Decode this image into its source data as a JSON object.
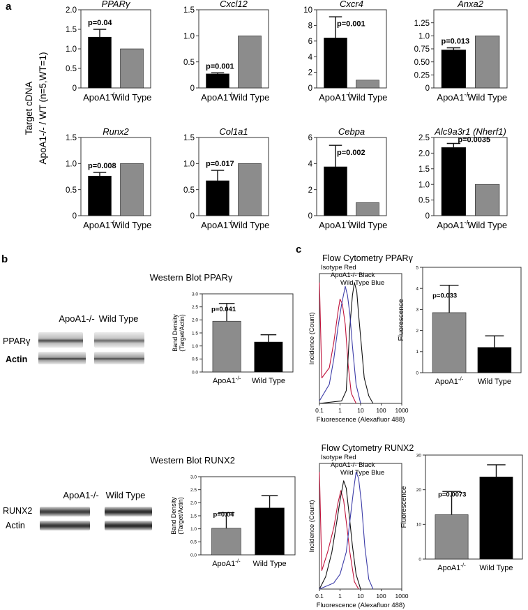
{
  "panel_labels": {
    "a": "a",
    "b": "b",
    "c": "c"
  },
  "panel_a": {
    "ylabel_line1": "Target cDNA",
    "ylabel_line2": "ApoA1-/- / WT (n=5,WT=1)"
  },
  "chart_data": [
    {
      "id": "pparg",
      "panel": "a",
      "type": "bar",
      "title": "PPARγ",
      "categories": [
        "ApoA1-/-",
        "Wild Type"
      ],
      "values": [
        1.3,
        1.0
      ],
      "error": [
        0.2,
        0
      ],
      "pvalue": "p=0.04",
      "ylim": [
        0,
        2.0
      ],
      "yticks": [
        0,
        0.5,
        1.0,
        1.5,
        2.0
      ],
      "ytick_labels": [
        "0",
        "0.5",
        "1.0",
        "1.5",
        "2.0"
      ],
      "ylabel": ""
    },
    {
      "id": "cxcl12",
      "panel": "a",
      "type": "bar",
      "title": "Cxcl12",
      "categories": [
        "ApoA1-/-",
        "Wild Type"
      ],
      "values": [
        0.27,
        1.0
      ],
      "error": [
        0.02,
        0
      ],
      "pvalue": "p=0.001",
      "ylim": [
        0,
        1.5
      ],
      "yticks": [
        0,
        0.5,
        1.0,
        1.5
      ],
      "ytick_labels": [
        "0",
        "0.5",
        "1.0",
        "1.5"
      ],
      "ylabel": ""
    },
    {
      "id": "cxcr4",
      "panel": "a",
      "type": "bar",
      "title": "Cxcr4",
      "categories": [
        "ApoA1-/-",
        "Wild Type"
      ],
      "values": [
        6.4,
        1.0
      ],
      "error": [
        2.7,
        0
      ],
      "pvalue": "p=0.001",
      "ylim": [
        0,
        10
      ],
      "yticks": [
        0,
        2,
        4,
        6,
        8,
        10
      ],
      "ytick_labels": [
        "0",
        "2",
        "4",
        "6",
        "8",
        "10"
      ],
      "ylabel": ""
    },
    {
      "id": "anxa2",
      "panel": "a",
      "type": "bar",
      "title": "Anxa2",
      "categories": [
        "ApoA1-/-",
        "Wild Type"
      ],
      "values": [
        0.73,
        1.0
      ],
      "error": [
        0.04,
        0
      ],
      "pvalue": "p=0.013",
      "ylim": [
        0,
        1.5
      ],
      "yticks": [
        0,
        0.25,
        0.5,
        0.75,
        1.0,
        1.25
      ],
      "ytick_labels": [
        "0",
        "0.25",
        "0.50",
        "0.75",
        "1.0",
        "1.25"
      ],
      "ylabel": ""
    },
    {
      "id": "runx2",
      "panel": "a",
      "type": "bar",
      "title": "Runx2",
      "categories": [
        "ApoA1-/-",
        "Wild Type"
      ],
      "values": [
        0.76,
        1.0
      ],
      "error": [
        0.07,
        0
      ],
      "pvalue": "p=0.008",
      "ylim": [
        0,
        1.5
      ],
      "yticks": [
        0,
        0.5,
        1.0,
        1.5
      ],
      "ytick_labels": [
        "0",
        "0.5",
        "1.0",
        "1.5"
      ],
      "ylabel": ""
    },
    {
      "id": "col1a1",
      "panel": "a",
      "type": "bar",
      "title": "Col1a1",
      "categories": [
        "ApoA1-/-",
        "Wild Type"
      ],
      "values": [
        0.67,
        1.0
      ],
      "error": [
        0.2,
        0
      ],
      "pvalue": "p=0.017",
      "ylim": [
        0,
        1.5
      ],
      "yticks": [
        0,
        0.5,
        1.0,
        1.5
      ],
      "ytick_labels": [
        "0",
        "0.5",
        "1.0",
        "1.5"
      ],
      "ylabel": ""
    },
    {
      "id": "cebpa",
      "panel": "a",
      "type": "bar",
      "title": "Cebpa",
      "categories": [
        "ApoA1-/-",
        "Wild Type"
      ],
      "values": [
        3.75,
        1.0
      ],
      "error": [
        1.65,
        0
      ],
      "pvalue": "p=0.002",
      "ylim": [
        0,
        6
      ],
      "yticks": [
        0,
        2,
        4,
        6
      ],
      "ytick_labels": [
        "0",
        "2",
        "4",
        "6"
      ],
      "ylabel": ""
    },
    {
      "id": "alc9a3r1",
      "panel": "a",
      "type": "bar",
      "title": "Alc9a3r1 (Nherf1)",
      "categories": [
        "ApoA1-/-",
        "Wild Type"
      ],
      "values": [
        2.18,
        1.0
      ],
      "error": [
        0.13,
        0
      ],
      "pvalue": "p=0.0035",
      "ylim": [
        0,
        2.5
      ],
      "yticks": [
        0,
        0.5,
        1.0,
        1.5,
        2.0,
        2.5
      ],
      "ytick_labels": [
        "0",
        "0.5",
        "1.0",
        "1.5",
        "2.0",
        "2.5"
      ],
      "ylabel": ""
    },
    {
      "id": "wb_pparg",
      "panel": "b",
      "type": "bar",
      "title": "Western Blot  PPARγ",
      "categories": [
        "ApoA1-/-",
        "Wild Type"
      ],
      "values": [
        1.95,
        1.15
      ],
      "error": [
        0.68,
        0.28
      ],
      "pvalue": "p=0.041",
      "ylim": [
        0,
        3.0
      ],
      "yticks": [
        0,
        0.5,
        1.0,
        1.5,
        2.0,
        2.5,
        3.0
      ],
      "ytick_labels": [
        "0.0",
        "0.5",
        "1.0",
        "1.5",
        "2.0",
        "2.5",
        "3.0"
      ],
      "ylabel": "Band Density (Target/Actin)"
    },
    {
      "id": "wb_runx2",
      "panel": "b",
      "type": "bar",
      "title": "Western Blot  RUNX2",
      "categories": [
        "ApoA1-/-",
        "Wild Type"
      ],
      "values": [
        1.02,
        1.8
      ],
      "error": [
        0.6,
        0.47
      ],
      "pvalue": "p=0.04",
      "ylim": [
        0,
        3.0
      ],
      "yticks": [
        0,
        0.5,
        1.0,
        1.5,
        2.0,
        2.5,
        3.0
      ],
      "ytick_labels": [
        "0.0",
        "0.5",
        "1.0",
        "1.5",
        "2.0",
        "2.5",
        "3.0"
      ],
      "ylabel": "Band Density (Target/Actin)"
    },
    {
      "id": "fc_pparg",
      "panel": "c",
      "type": "bar",
      "title": "",
      "categories": [
        "ApoA1-/-",
        "Wild Type"
      ],
      "values": [
        2.85,
        1.2
      ],
      "error": [
        1.3,
        0.55
      ],
      "pvalue": "p=0.033",
      "ylim": [
        0,
        5
      ],
      "yticks": [
        0,
        1,
        2,
        3,
        4,
        5
      ],
      "ytick_labels": [
        "0",
        "1",
        "2",
        "3",
        "4",
        "5"
      ],
      "ylabel": "Fluorescence"
    },
    {
      "id": "fc_runx2",
      "panel": "c",
      "type": "bar",
      "title": "",
      "categories": [
        "ApoA1-/-",
        "Wild Type"
      ],
      "values": [
        12.8,
        23.7
      ],
      "error": [
        6.7,
        3.5
      ],
      "pvalue": "p=0.0073",
      "ylim": [
        0,
        30
      ],
      "yticks": [
        0,
        10,
        20,
        30
      ],
      "ytick_labels": [
        "0",
        "10",
        "20",
        "30"
      ],
      "ylabel": "Fluorescence"
    }
  ],
  "histograms": [
    {
      "id": "hist_pparg",
      "title": "Flow Cytometry  PPARγ",
      "xlabel": "Fluorescence (Alexafluor 488)",
      "ylabel": "Incidence (Count)",
      "xticks": [
        "0.1",
        "1",
        "10",
        "100",
        "1000"
      ],
      "legend": [
        "Isotype Red",
        "ApoA1-/- Black",
        "Wild Type Blue"
      ],
      "series": [
        {
          "name": "Isotype",
          "color": "#c0143c",
          "points": [
            [
              0.1,
              0.95
            ],
            [
              0.13,
              0.2
            ],
            [
              0.3,
              0.28
            ],
            [
              0.5,
              0.48
            ],
            [
              0.8,
              0.72
            ],
            [
              1.0,
              0.82
            ],
            [
              1.3,
              0.78
            ],
            [
              1.8,
              0.62
            ],
            [
              2.5,
              0.3
            ],
            [
              3.5,
              0.08
            ],
            [
              6,
              0
            ]
          ]
        },
        {
          "name": "ApoA1-/-",
          "color": "#111111",
          "points": [
            [
              0.1,
              0
            ],
            [
              1.2,
              0.02
            ],
            [
              2,
              0.1
            ],
            [
              3,
              0.6
            ],
            [
              4,
              0.85
            ],
            [
              5,
              0.95
            ],
            [
              6.5,
              0.88
            ],
            [
              8,
              0.7
            ],
            [
              11,
              0.45
            ],
            [
              15,
              0.2
            ],
            [
              25,
              0.06
            ],
            [
              40,
              0
            ]
          ]
        },
        {
          "name": "Wild Type",
          "color": "#3d3da8",
          "points": [
            [
              0.1,
              0.02
            ],
            [
              0.3,
              0.15
            ],
            [
              0.5,
              0.35
            ],
            [
              0.8,
              0.6
            ],
            [
              1.2,
              0.78
            ],
            [
              1.8,
              0.92
            ],
            [
              2.3,
              0.85
            ],
            [
              3,
              0.7
            ],
            [
              4,
              0.45
            ],
            [
              6,
              0.15
            ],
            [
              10,
              0
            ]
          ]
        }
      ]
    },
    {
      "id": "hist_runx2",
      "title": "Flow Cytometry  RUNX2",
      "xlabel": "Fluorescence (Alexafluor 488)",
      "ylabel": "Incidence (Count)",
      "xticks": [
        "0.1",
        "1",
        "10",
        "100",
        "1000"
      ],
      "legend": [
        "Isotype Red",
        "ApoA1-/- Black",
        "Wild Type Blue"
      ],
      "series": [
        {
          "name": "Isotype",
          "color": "#c0143c",
          "points": [
            [
              0.1,
              0.95
            ],
            [
              0.13,
              0.15
            ],
            [
              0.25,
              0.3
            ],
            [
              0.5,
              0.5
            ],
            [
              0.8,
              0.7
            ],
            [
              1.1,
              0.8
            ],
            [
              1.5,
              0.72
            ],
            [
              2,
              0.55
            ],
            [
              3,
              0.3
            ],
            [
              5,
              0.06
            ],
            [
              8,
              0
            ]
          ]
        },
        {
          "name": "ApoA1-/-",
          "color": "#111111",
          "points": [
            [
              0.1,
              0
            ],
            [
              0.2,
              0.1
            ],
            [
              0.4,
              0.3
            ],
            [
              0.7,
              0.55
            ],
            [
              1.0,
              0.72
            ],
            [
              1.5,
              0.88
            ],
            [
              2,
              0.82
            ],
            [
              2.8,
              0.6
            ],
            [
              4,
              0.35
            ],
            [
              6,
              0.12
            ],
            [
              10,
              0
            ]
          ]
        },
        {
          "name": "Wild Type",
          "color": "#3d3da8",
          "points": [
            [
              0.1,
              0
            ],
            [
              0.5,
              0.05
            ],
            [
              1,
              0.12
            ],
            [
              2,
              0.3
            ],
            [
              3,
              0.55
            ],
            [
              4.5,
              0.8
            ],
            [
              6,
              0.95
            ],
            [
              8,
              0.9
            ],
            [
              11,
              0.7
            ],
            [
              16,
              0.35
            ],
            [
              25,
              0.08
            ],
            [
              40,
              0
            ]
          ]
        }
      ]
    }
  ],
  "blots": [
    {
      "id": "blot_pparg",
      "col1": "ApoA1-/-",
      "col2": "Wild Type",
      "row1": "PPARγ",
      "row2": "Actin"
    },
    {
      "id": "blot_runx2",
      "col1": "ApoA1-/-",
      "col2": "Wild Type",
      "row1": "RUNX2",
      "row2": "Actin"
    }
  ],
  "colors": {
    "knockout": "#000000",
    "wildtype": "#8c8c8c",
    "axis": "#333333"
  }
}
